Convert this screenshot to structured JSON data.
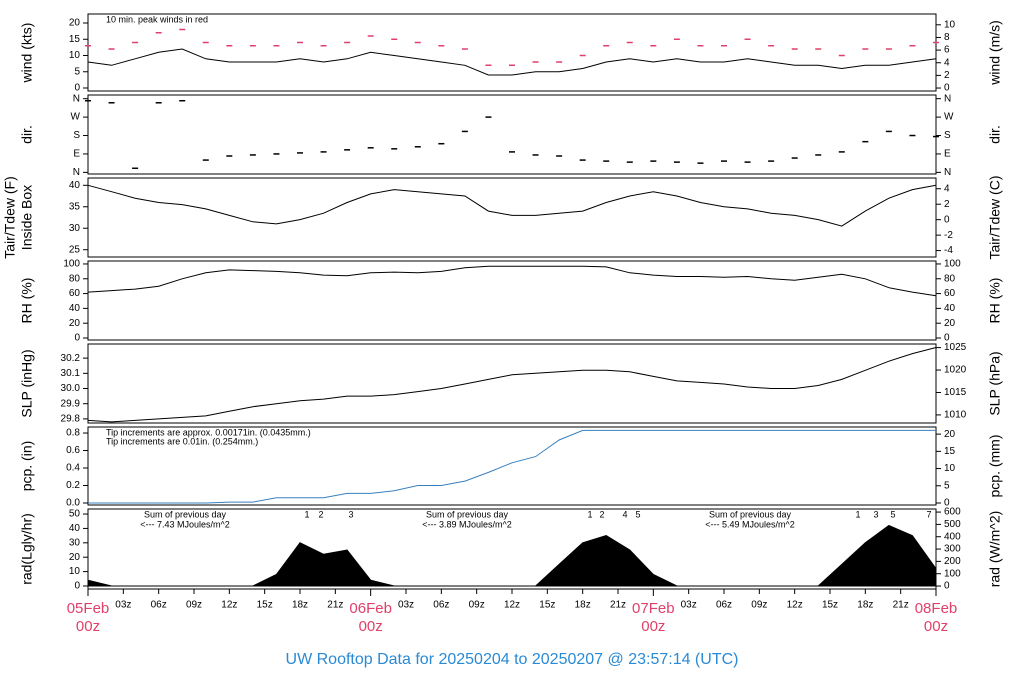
{
  "title": "UW Rooftop Data for 20250204  to  20250207 @ 23:57:14  (UTC)",
  "x_axis": {
    "xlim": [
      0,
      72
    ],
    "xticks": [
      {
        "value": 3,
        "label": "03z"
      },
      {
        "value": 6,
        "label": "06z"
      },
      {
        "value": 9,
        "label": "09z"
      },
      {
        "value": 12,
        "label": "12z"
      },
      {
        "value": 15,
        "label": "15z"
      },
      {
        "value": 18,
        "label": "18z"
      },
      {
        "value": 21,
        "label": "21z"
      },
      {
        "value": 27,
        "label": "03z"
      },
      {
        "value": 30,
        "label": "06z"
      },
      {
        "value": 33,
        "label": "09z"
      },
      {
        "value": 36,
        "label": "12z"
      },
      {
        "value": 39,
        "label": "15z"
      },
      {
        "value": 42,
        "label": "18z"
      },
      {
        "value": 45,
        "label": "21z"
      },
      {
        "value": 51,
        "label": "03z"
      },
      {
        "value": 54,
        "label": "06z"
      },
      {
        "value": 57,
        "label": "09z"
      },
      {
        "value": 60,
        "label": "12z"
      },
      {
        "value": 63,
        "label": "15z"
      },
      {
        "value": 66,
        "label": "18z"
      },
      {
        "value": 69,
        "label": "21z"
      }
    ],
    "day_ticks": [
      {
        "value": 0,
        "label": "05Feb",
        "sublabel": "00z"
      },
      {
        "value": 24,
        "label": "06Feb",
        "sublabel": "00z"
      },
      {
        "value": 48,
        "label": "07Feb",
        "sublabel": "00z"
      },
      {
        "value": 72,
        "label": "08Feb",
        "sublabel": "00z"
      }
    ]
  },
  "chart_data": [
    {
      "type": "line",
      "ylabel": [
        "wind (kts)"
      ],
      "y2label": [
        "wind (m/s)"
      ],
      "ylim": [
        -0.92,
        22.77
      ],
      "yticks": [
        0,
        5,
        10,
        15,
        20
      ],
      "y2lim": [
        -0.47,
        11.71
      ],
      "y2ticks": [
        0,
        2,
        4,
        6,
        8,
        10
      ],
      "annotations": [
        {
          "text": "10 min. peak winds in red",
          "color": "#e0406a"
        }
      ],
      "x": [
        0,
        2,
        4,
        6,
        8,
        10,
        12,
        14,
        16,
        18,
        20,
        22,
        24,
        26,
        28,
        30,
        32,
        34,
        36,
        38,
        40,
        42,
        44,
        46,
        48,
        50,
        52,
        54,
        56,
        58,
        60,
        62,
        64,
        66,
        68,
        70,
        72
      ],
      "series": [
        {
          "style": "dash",
          "color": "#e0406a",
          "values": [
            13,
            12,
            14,
            17,
            18,
            14,
            13,
            13,
            13,
            14,
            13,
            14,
            16,
            15,
            14,
            13,
            12,
            7,
            7,
            8,
            8,
            10,
            13,
            14,
            13,
            15,
            13,
            13,
            15,
            13,
            12,
            12,
            10,
            12,
            12,
            13,
            14
          ]
        },
        {
          "style": "line",
          "color": "#000000",
          "values": [
            8,
            7,
            9,
            11,
            12,
            9,
            8,
            8,
            8,
            9,
            8,
            9,
            11,
            10,
            9,
            8,
            7,
            4,
            4,
            5,
            5,
            6,
            8,
            9,
            8,
            9,
            8,
            8,
            9,
            8,
            7,
            7,
            6,
            7,
            7,
            8,
            9
          ]
        }
      ]
    },
    {
      "type": "line",
      "ylabel": [
        "dir."
      ],
      "y2label": [
        "dir."
      ],
      "ylim": [
        -8,
        378
      ],
      "yticks": [
        {
          "value": 0,
          "label": "N"
        },
        {
          "value": 90,
          "label": "E"
        },
        {
          "value": 180,
          "label": "S"
        },
        {
          "value": 270,
          "label": "W"
        },
        {
          "value": 360,
          "label": "N"
        }
      ],
      "y2lim": [
        -8,
        378
      ],
      "y2ticks": [
        {
          "value": 0,
          "label": "N"
        },
        {
          "value": 90,
          "label": "E"
        },
        {
          "value": 180,
          "label": "S"
        },
        {
          "value": 270,
          "label": "W"
        },
        {
          "value": 360,
          "label": "N"
        }
      ],
      "x": [
        0,
        2,
        4,
        6,
        8,
        10,
        12,
        14,
        16,
        18,
        20,
        22,
        24,
        26,
        28,
        30,
        32,
        34,
        36,
        38,
        40,
        42,
        44,
        46,
        48,
        50,
        52,
        54,
        56,
        58,
        60,
        62,
        64,
        66,
        68,
        70,
        72
      ],
      "series": [
        {
          "style": "dash",
          "color": "#000000",
          "values": [
            350,
            340,
            20,
            340,
            350,
            60,
            80,
            85,
            90,
            95,
            100,
            110,
            120,
            115,
            125,
            140,
            200,
            270,
            100,
            85,
            80,
            60,
            55,
            50,
            55,
            50,
            45,
            55,
            50,
            55,
            70,
            85,
            100,
            150,
            200,
            180,
            175
          ]
        }
      ]
    },
    {
      "type": "line",
      "ylabel": [
        "Tair/Tdew (F)",
        "Inside Box"
      ],
      "y2label": [
        "Tair/Tdew (C)"
      ],
      "ylim": [
        23.3,
        41.7
      ],
      "yticks": [
        25,
        30,
        35,
        40
      ],
      "y2lim": [
        -4.83,
        5.39
      ],
      "y2ticks": [
        -4,
        -2,
        0,
        2,
        4
      ],
      "x": [
        0,
        2,
        4,
        6,
        8,
        10,
        12,
        14,
        16,
        18,
        20,
        22,
        24,
        26,
        28,
        30,
        32,
        34,
        36,
        38,
        40,
        42,
        44,
        46,
        48,
        50,
        52,
        54,
        56,
        58,
        60,
        62,
        64,
        66,
        68,
        70,
        72
      ],
      "series": [
        {
          "style": "line",
          "color": "#000000",
          "values": [
            40,
            38.5,
            37,
            36,
            35.5,
            34.5,
            33,
            31.5,
            31,
            32,
            33.5,
            36,
            38,
            39,
            38.5,
            38,
            37.5,
            34,
            33,
            33,
            33.5,
            34,
            36,
            37.5,
            38.5,
            37.5,
            36,
            35,
            34.5,
            33.5,
            33,
            32,
            30.5,
            34,
            37,
            39,
            40
          ]
        }
      ]
    },
    {
      "type": "line",
      "ylabel": [
        "RH (%)"
      ],
      "y2label": [
        "RH (%)"
      ],
      "ylim": [
        -2.7,
        104
      ],
      "yticks": [
        0,
        20,
        40,
        60,
        80,
        100
      ],
      "y2lim": [
        -2.7,
        104
      ],
      "y2ticks": [
        0,
        20,
        40,
        60,
        80,
        100
      ],
      "x": [
        0,
        2,
        4,
        6,
        8,
        10,
        12,
        14,
        16,
        18,
        20,
        22,
        24,
        26,
        28,
        30,
        32,
        34,
        36,
        38,
        40,
        42,
        44,
        46,
        48,
        50,
        52,
        54,
        56,
        58,
        60,
        62,
        64,
        66,
        68,
        70,
        72
      ],
      "series": [
        {
          "style": "line",
          "color": "#000000",
          "values": [
            62,
            64,
            66,
            70,
            80,
            88,
            92,
            91,
            90,
            88,
            85,
            84,
            88,
            89,
            88,
            90,
            95,
            97,
            97,
            97,
            97,
            97,
            96,
            88,
            85,
            83,
            83,
            82,
            83,
            80,
            78,
            82,
            86,
            80,
            68,
            62,
            57
          ]
        }
      ]
    },
    {
      "type": "line",
      "ylabel": [
        "SLP (inHg)"
      ],
      "y2label": [
        "SLP (hPa)"
      ],
      "ylim": [
        29.773,
        30.293
      ],
      "yticks": [
        29.8,
        29.9,
        {
          "value": 30,
          "label": "30.0"
        },
        30.1,
        30.2
      ],
      "y2lim": [
        1008.2,
        1025.8
      ],
      "y2ticks": [
        1010,
        1015,
        1020,
        1025
      ],
      "x": [
        0,
        2,
        4,
        6,
        8,
        10,
        12,
        14,
        16,
        18,
        20,
        22,
        24,
        26,
        28,
        30,
        32,
        34,
        36,
        38,
        40,
        42,
        44,
        46,
        48,
        50,
        52,
        54,
        56,
        58,
        60,
        62,
        64,
        66,
        68,
        70,
        72
      ],
      "series": [
        {
          "style": "line",
          "color": "#000000",
          "values": [
            29.79,
            29.78,
            29.79,
            29.8,
            29.81,
            29.82,
            29.85,
            29.88,
            29.9,
            29.92,
            29.93,
            29.95,
            29.95,
            29.96,
            29.98,
            30.0,
            30.03,
            30.06,
            30.09,
            30.1,
            30.11,
            30.12,
            30.12,
            30.11,
            30.08,
            30.05,
            30.04,
            30.03,
            30.01,
            30.0,
            30.0,
            30.02,
            30.06,
            30.12,
            30.18,
            30.23,
            30.27
          ]
        }
      ]
    },
    {
      "type": "line",
      "ylabel": [
        "pcp. (in)"
      ],
      "y2label": [
        "pcp. (mm)"
      ],
      "ylim": [
        -0.023,
        0.869
      ],
      "yticks": [
        {
          "value": 0,
          "label": "0.0"
        },
        0.2,
        0.4,
        0.6,
        0.8
      ],
      "y2lim": [
        -0.58,
        22.07
      ],
      "y2ticks": [
        0,
        5,
        10,
        15,
        20
      ],
      "annotations": [
        {
          "text": "Tip increments are approx. 0.00171in. (0.0435mm.)",
          "color": "#e0406a"
        },
        {
          "text": "Tip increments are 0.01in. (0.254mm.)",
          "color": "#3a80c0"
        }
      ],
      "x": [
        0,
        2,
        4,
        6,
        8,
        10,
        12,
        14,
        16,
        18,
        20,
        22,
        24,
        26,
        28,
        30,
        32,
        34,
        36,
        38,
        40,
        42,
        44,
        46,
        48,
        50,
        52,
        54,
        56,
        58,
        60,
        62,
        64,
        66,
        68,
        70,
        72
      ],
      "series": [
        {
          "style": "line",
          "color": "#3a80c0",
          "values": [
            0,
            0,
            0,
            0,
            0,
            0,
            0.01,
            0.01,
            0.06,
            0.06,
            0.06,
            0.11,
            0.11,
            0.14,
            0.2,
            0.2,
            0.25,
            0.35,
            0.46,
            0.53,
            0.72,
            0.83,
            0.83,
            0.83,
            0.83,
            0.83,
            0.83,
            0.83,
            0.83,
            0.83,
            0.83,
            0.83,
            0.83,
            0.83,
            0.83,
            0.83,
            0.83
          ]
        }
      ]
    },
    {
      "type": "area",
      "ylabel": [
        "rad(Lgly/hr)"
      ],
      "y2label": [
        "rad (W/m^2)"
      ],
      "ylim": [
        -2.1,
        53.5
      ],
      "yticks": [
        0,
        10,
        20,
        30,
        40,
        50
      ],
      "y2lim": [
        -24,
        625
      ],
      "y2ticks": [
        0,
        100,
        200,
        300,
        400,
        500,
        600
      ],
      "day_sums": [
        {
          "text": "Sum of previous day",
          "sub": "<--- 7.43 MJoules/m^2",
          "peaks": [
            "1",
            "2",
            "3"
          ]
        },
        {
          "text": "Sum of previous day",
          "sub": "<--- 3.89 MJoules/m^2",
          "peaks": [
            "1",
            "2",
            "4",
            "5"
          ]
        },
        {
          "text": "Sum of previous day",
          "sub": "<--- 5.49 MJoules/m^2",
          "peaks": [
            "1",
            "3",
            "5",
            "7"
          ]
        }
      ],
      "day_sum_color": "#a030e0",
      "x": [
        0,
        2,
        4,
        6,
        8,
        10,
        12,
        14,
        16,
        18,
        20,
        22,
        24,
        26,
        28,
        30,
        32,
        34,
        36,
        38,
        40,
        42,
        44,
        46,
        48,
        50,
        52,
        54,
        56,
        58,
        60,
        62,
        64,
        66,
        68,
        70,
        72
      ],
      "series": [
        {
          "style": "area",
          "color": "#000000",
          "values": [
            4,
            0,
            0,
            0,
            0,
            0,
            0,
            0,
            8,
            30,
            22,
            25,
            4,
            0,
            0,
            0,
            0,
            0,
            0,
            0,
            15,
            30,
            35,
            25,
            8,
            0,
            0,
            0,
            0,
            0,
            0,
            0,
            15,
            30,
            42,
            35,
            12
          ]
        }
      ]
    }
  ]
}
